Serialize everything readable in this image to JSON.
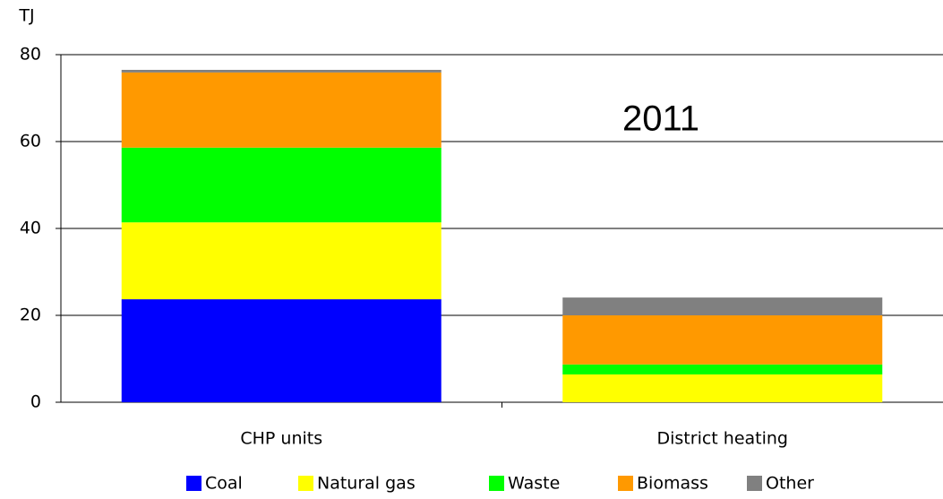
{
  "chart_data": {
    "type": "bar",
    "stacked": true,
    "y_label": "TJ",
    "annotation": "2011",
    "categories": [
      "CHP units",
      "District heating"
    ],
    "series": [
      {
        "name": "Coal",
        "color": "#0000ff",
        "values": [
          23.7,
          0
        ]
      },
      {
        "name": "Natural gas",
        "color": "#ffff00",
        "values": [
          17.7,
          6.4
        ]
      },
      {
        "name": "Waste",
        "color": "#00ff00",
        "values": [
          17.2,
          2.3
        ]
      },
      {
        "name": "Biomass",
        "color": "#ff9900",
        "values": [
          17.3,
          11.3
        ]
      },
      {
        "name": "Other",
        "color": "#808080",
        "values": [
          0.6,
          4.1
        ]
      }
    ],
    "ylim": [
      0,
      80
    ],
    "yticks": [
      0,
      20,
      40,
      60,
      80
    ],
    "grid": true
  }
}
